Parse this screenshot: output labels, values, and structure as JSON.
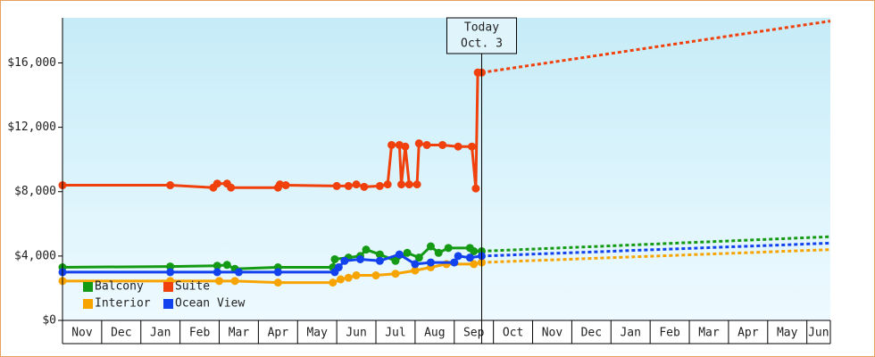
{
  "chart_data": {
    "type": "line",
    "categories": [
      "Nov",
      "Dec",
      "Jan",
      "Feb",
      "Mar",
      "Apr",
      "May",
      "Jun",
      "Jul",
      "Aug",
      "Sep",
      "Oct",
      "Nov",
      "Dec",
      "Jan",
      "Feb",
      "Mar",
      "Apr",
      "May",
      "Jun"
    ],
    "xlim": [
      0,
      19.6
    ],
    "ylim": [
      0,
      18800
    ],
    "yticks": [
      {
        "value": 0,
        "label": "$0"
      },
      {
        "value": 4000,
        "label": "$4,000"
      },
      {
        "value": 8000,
        "label": "$8,000"
      },
      {
        "value": 12000,
        "label": "$12,000"
      },
      {
        "value": 16000,
        "label": "$16,000"
      }
    ],
    "today_label": "Today",
    "today_date": "Oct. 3",
    "today_x": 10.7,
    "series": [
      {
        "name": "Balcony",
        "color": "#159a15",
        "x": [
          0,
          2.75,
          3.95,
          4.2,
          4.4,
          5.5,
          6.9,
          6.95,
          7.3,
          7.6,
          7.75,
          8.1,
          8.5,
          8.8,
          9.1,
          9.4,
          9.6,
          9.85,
          10.4,
          10.5,
          10.7
        ],
        "values": [
          3300,
          3350,
          3400,
          3450,
          3200,
          3300,
          3300,
          3800,
          3900,
          4000,
          4400,
          4100,
          3700,
          4200,
          3900,
          4600,
          4200,
          4500,
          4500,
          4300,
          4300
        ],
        "forecast_x": [
          10.7,
          19.6
        ],
        "forecast_values": [
          4300,
          5200
        ]
      },
      {
        "name": "Suite",
        "color": "#f0400c",
        "x": [
          0,
          2.75,
          3.85,
          3.95,
          4.2,
          4.3,
          5.5,
          5.55,
          5.7,
          7.0,
          7.3,
          7.5,
          7.7,
          8.1,
          8.3,
          8.4,
          8.6,
          8.65,
          8.75,
          8.85,
          9.05,
          9.1,
          9.3,
          9.7,
          10.1,
          10.45,
          10.55,
          10.6,
          10.7
        ],
        "values": [
          8400,
          8400,
          8250,
          8500,
          8500,
          8250,
          8250,
          8450,
          8400,
          8350,
          8350,
          8450,
          8300,
          8350,
          8450,
          10900,
          10900,
          8450,
          10800,
          8450,
          8450,
          11000,
          10900,
          10900,
          10800,
          10800,
          8200,
          15400,
          15400
        ],
        "forecast_x": [
          10.7,
          19.6
        ],
        "forecast_values": [
          15400,
          18600
        ]
      },
      {
        "name": "Interior",
        "color": "#f7a400",
        "x": [
          0,
          2.75,
          4.0,
          4.4,
          5.5,
          6.9,
          7.1,
          7.3,
          7.5,
          8.0,
          8.5,
          9.0,
          9.4,
          9.8,
          10.5,
          10.7
        ],
        "values": [
          2450,
          2450,
          2450,
          2450,
          2350,
          2350,
          2550,
          2650,
          2800,
          2800,
          2900,
          3100,
          3300,
          3500,
          3500,
          3600
        ],
        "forecast_x": [
          10.7,
          19.6
        ],
        "forecast_values": [
          3600,
          4400
        ]
      },
      {
        "name": "Ocean View",
        "color": "#1242ee",
        "x": [
          0,
          2.75,
          3.95,
          4.5,
          5.5,
          6.95,
          7.05,
          7.2,
          7.6,
          8.1,
          8.6,
          9.0,
          9.4,
          10.0,
          10.1,
          10.4,
          10.7
        ],
        "values": [
          3000,
          3000,
          3000,
          3000,
          3000,
          3000,
          3300,
          3700,
          3800,
          3700,
          4100,
          3500,
          3600,
          3600,
          4000,
          3900,
          4000
        ],
        "forecast_x": [
          10.7,
          19.6
        ],
        "forecast_values": [
          4000,
          4800
        ]
      }
    ]
  }
}
